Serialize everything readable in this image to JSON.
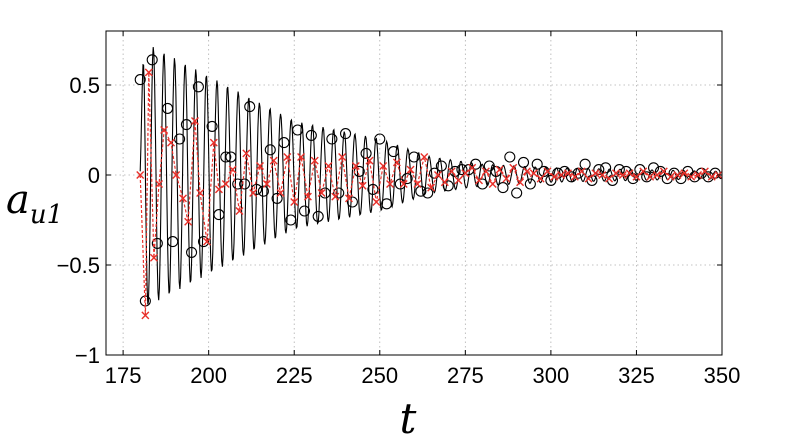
{
  "chart_data": {
    "type": "line",
    "title": "",
    "xlabel": "t",
    "ylabel_base": "a",
    "ylabel_sub": "u1",
    "xlim": [
      170,
      350
    ],
    "ylim": [
      -1,
      0.8
    ],
    "xticks": [
      175,
      200,
      225,
      250,
      275,
      300,
      325,
      350
    ],
    "yticks": [
      -1,
      -0.5,
      0,
      0.5
    ],
    "xtick_labels": [
      "175",
      "200",
      "225",
      "250",
      "275",
      "300",
      "325",
      "350"
    ],
    "ytick_labels": [
      "−1",
      "−0.5",
      "0",
      "0.5"
    ],
    "grid": true,
    "grid_style": "dotted",
    "legend": "none",
    "series": [
      {
        "style": "solid-line-with-circle-markers",
        "color": "#000000",
        "envelope": [
          [
            180,
            0.75
          ],
          [
            200,
            0.55
          ],
          [
            225,
            0.3
          ],
          [
            250,
            0.2
          ],
          [
            265,
            0.1
          ],
          [
            280,
            0.06
          ],
          [
            300,
            0.04
          ],
          [
            350,
            0.02
          ]
        ],
        "period": 3.1,
        "x": [
          180,
          181.5,
          183.5,
          185,
          188,
          189.5,
          191.5,
          193.5,
          195,
          197,
          198.5,
          201,
          203,
          205,
          206.5,
          208.5,
          210.5,
          212,
          214,
          216,
          218,
          220,
          222,
          224,
          226,
          228,
          230,
          232,
          234,
          236,
          238,
          240,
          242,
          244,
          246,
          248,
          250,
          252,
          254,
          256,
          258,
          260,
          262,
          264,
          266,
          268,
          270,
          272,
          274,
          276,
          278,
          280,
          282,
          284,
          286,
          288,
          290,
          292,
          294,
          296,
          298,
          300,
          302,
          304,
          306,
          308,
          310,
          312,
          314,
          316,
          318,
          320,
          322,
          324,
          326,
          328,
          330,
          332,
          334,
          336,
          338,
          340,
          342,
          344,
          346,
          348
        ],
        "y": [
          0.53,
          -0.7,
          0.64,
          -0.38,
          0.37,
          -0.37,
          0.2,
          0.28,
          -0.43,
          0.49,
          -0.37,
          0.27,
          -0.22,
          0.1,
          0.1,
          -0.05,
          -0.05,
          0.38,
          -0.08,
          -0.09,
          0.14,
          -0.13,
          0.18,
          -0.25,
          0.25,
          -0.2,
          0.22,
          -0.23,
          -0.1,
          0.2,
          -0.1,
          0.23,
          -0.15,
          0.02,
          0.12,
          -0.08,
          0.2,
          -0.16,
          0.13,
          -0.05,
          -0.02,
          0.1,
          -0.09,
          -0.1,
          0.01,
          0.05,
          -0.06,
          0.02,
          0.03,
          0.03,
          0.06,
          -0.05,
          0.05,
          0.02,
          -0.07,
          0.1,
          -0.1,
          0.07,
          -0.05,
          0.06,
          0.02,
          -0.03,
          0.01,
          0.02,
          -0.01,
          0.01,
          0.06,
          -0.03,
          0.03,
          0.04,
          -0.03,
          0.03,
          0.02,
          -0.02,
          0.03,
          -0.01,
          0.04,
          0.02,
          -0.02,
          0.01,
          -0.02,
          0.02,
          -0.01,
          0.01,
          -0.01,
          0.01
        ]
      },
      {
        "style": "dashed-line-with-cross-markers",
        "color": "#e8302a",
        "x": [
          180,
          181.5,
          182.5,
          184,
          185.5,
          187,
          189,
          190.5,
          192.5,
          194,
          196,
          197.5,
          199.5,
          201.5,
          203,
          205,
          207,
          209,
          211,
          213,
          215,
          217,
          219,
          221,
          223,
          225,
          227,
          229,
          231,
          233,
          235,
          237,
          239,
          241,
          243,
          245,
          247,
          249,
          251,
          253,
          255,
          257,
          259,
          261,
          263,
          265,
          267,
          269,
          271,
          273,
          275,
          277,
          279,
          281,
          283,
          285,
          287,
          289,
          291,
          293,
          295,
          297,
          299,
          301,
          303,
          305,
          307,
          309,
          311,
          313,
          315,
          317,
          319,
          321,
          323,
          325,
          327,
          329,
          331,
          333,
          335,
          337,
          339,
          341,
          343,
          345,
          347,
          349
        ],
        "y": [
          0.0,
          -0.78,
          0.57,
          -0.46,
          -0.05,
          0.25,
          0.18,
          0.0,
          -0.13,
          -0.26,
          0.3,
          -0.1,
          -0.37,
          0.18,
          -0.08,
          -0.05,
          0.03,
          -0.2,
          0.12,
          -0.1,
          0.05,
          -0.05,
          0.08,
          -0.1,
          0.1,
          -0.15,
          0.1,
          -0.12,
          0.08,
          -0.1,
          0.05,
          -0.12,
          0.1,
          -0.13,
          0.05,
          -0.06,
          0.08,
          -0.15,
          0.05,
          -0.05,
          0.07,
          -0.05,
          0.03,
          -0.05,
          0.1,
          -0.07,
          0.0,
          -0.04,
          0.02,
          -0.03,
          0.01,
          0.04,
          -0.03,
          0.02,
          -0.05,
          0.03,
          -0.02,
          0.04,
          -0.04,
          0.02,
          0.01,
          -0.02,
          0.02,
          -0.01,
          0.0,
          0.01,
          -0.01,
          0.02,
          -0.02,
          0.01,
          0.0,
          -0.02,
          0.01,
          0.0,
          0.01,
          -0.01,
          0.02,
          -0.01,
          0.0,
          0.02,
          -0.01,
          0.0,
          0.01,
          -0.01,
          0.0,
          0.02,
          -0.01,
          0.0
        ]
      }
    ]
  }
}
